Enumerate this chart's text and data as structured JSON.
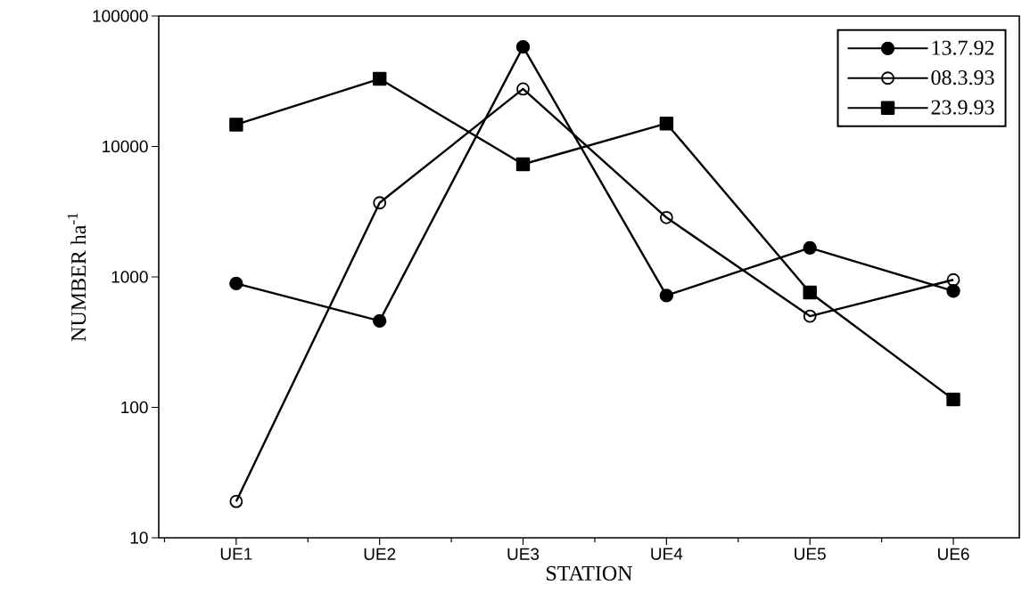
{
  "chart_data": {
    "type": "line",
    "xlabel": "STATION",
    "ylabel": "NUMBER ha$^{-1}$",
    "categories": [
      "UE1",
      "UE2",
      "UE3",
      "UE4",
      "UE5",
      "UE6"
    ],
    "series": [
      {
        "name": "13.7.92",
        "color": "#000000",
        "marker": "circle",
        "values": [
          890,
          460,
          58000,
          720,
          1670,
          780
        ]
      },
      {
        "name": "08.3.93",
        "color": "#000000",
        "marker": "open circle",
        "values": [
          19,
          3700,
          27600,
          2850,
          500,
          950
        ]
      },
      {
        "name": "23.9.93",
        "color": "#000000",
        "marker": "square",
        "values": [
          14700,
          33000,
          7300,
          15000,
          760,
          115
        ]
      }
    ],
    "log": "y",
    "ylim": [
      10,
      100000
    ],
    "yticks": [
      10,
      100,
      1000,
      10000,
      100000
    ],
    "legend": "top right",
    "line_style": "solid",
    "grid": false
  }
}
